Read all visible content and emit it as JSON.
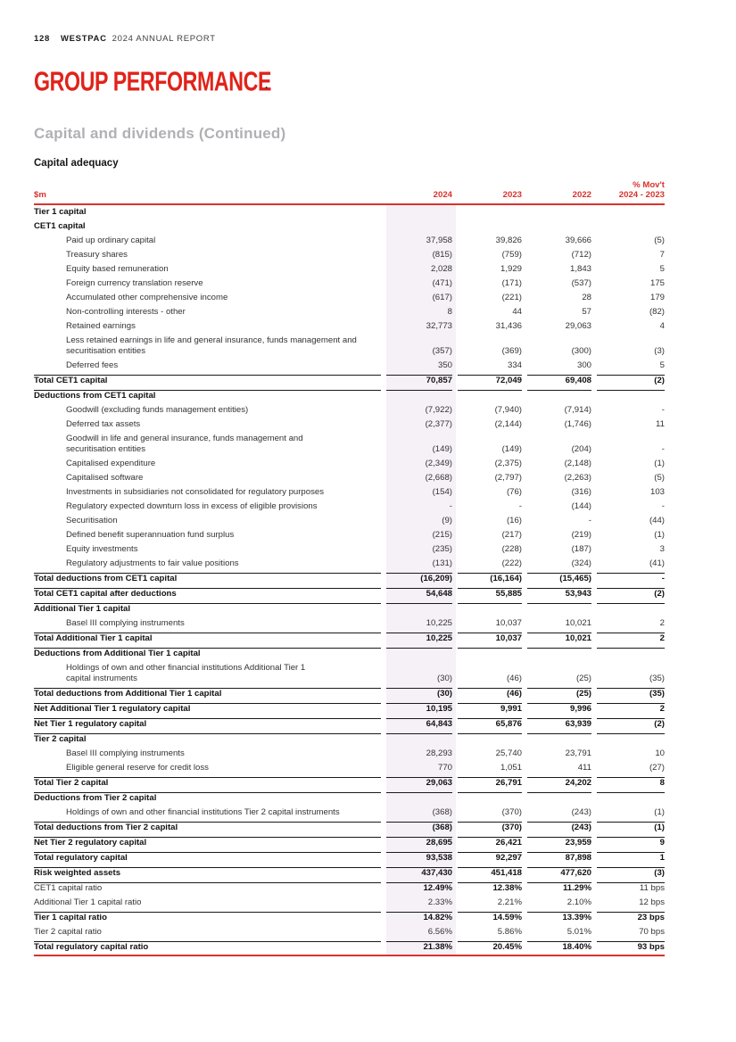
{
  "page": {
    "page_number": "128",
    "brand": "WESTPAC",
    "report": "2024 ANNUAL REPORT",
    "section_title": "GROUP PERFORMANCE",
    "section_dot": ".",
    "subtitle": "Capital and dividends (Continued)",
    "table_title": "Capital adequacy"
  },
  "colors": {
    "title_red": "#E0231A",
    "accent_red": "#D8332C",
    "column_highlight": "#F6F0F7",
    "gray_heading": "#B1B0B4"
  },
  "table": {
    "unit_label": "$m",
    "col_2024": "2024",
    "col_2023": "2023",
    "col_2022": "2022",
    "col_movt_line1": "% Mov't",
    "col_movt_line2": "2024 - 2023",
    "rows": [
      {
        "label": "Tier 1 capital",
        "style": "section"
      },
      {
        "label": "CET1 capital",
        "style": "section"
      },
      {
        "label": "Paid up ordinary capital",
        "style": "item",
        "v": [
          "37,958",
          "39,826",
          "39,666",
          "(5)"
        ]
      },
      {
        "label": "Treasury shares",
        "style": "item",
        "v": [
          "(815)",
          "(759)",
          "(712)",
          "7"
        ]
      },
      {
        "label": "Equity based remuneration",
        "style": "item",
        "v": [
          "2,028",
          "1,929",
          "1,843",
          "5"
        ]
      },
      {
        "label": "Foreign currency translation reserve",
        "style": "item",
        "v": [
          "(471)",
          "(171)",
          "(537)",
          "175"
        ]
      },
      {
        "label": "Accumulated other comprehensive income",
        "style": "item",
        "v": [
          "(617)",
          "(221)",
          "28",
          "179"
        ]
      },
      {
        "label": "Non-controlling interests - other",
        "style": "item",
        "v": [
          "8",
          "44",
          "57",
          "(82)"
        ]
      },
      {
        "label": "Retained earnings",
        "style": "item",
        "v": [
          "32,773",
          "31,436",
          "29,063",
          "4"
        ]
      },
      {
        "label": "Less retained earnings in life and general insurance, funds management and",
        "label2": "securitisation entities",
        "style": "item",
        "v": [
          "(357)",
          "(369)",
          "(300)",
          "(3)"
        ]
      },
      {
        "label": "Deferred fees",
        "style": "item",
        "v": [
          "350",
          "334",
          "300",
          "5"
        ]
      },
      {
        "label": "Total CET1 capital",
        "style": "total",
        "bt": true,
        "v": [
          "70,857",
          "72,049",
          "69,408",
          "(2)"
        ]
      },
      {
        "label": "Deductions from CET1 capital",
        "style": "section",
        "bt": true
      },
      {
        "label": "Goodwill (excluding funds management entities)",
        "style": "item",
        "v": [
          "(7,922)",
          "(7,940)",
          "(7,914)",
          "-"
        ]
      },
      {
        "label": "Deferred tax assets",
        "style": "item",
        "v": [
          "(2,377)",
          "(2,144)",
          "(1,746)",
          "11"
        ]
      },
      {
        "label": "Goodwill in life and general insurance, funds management and",
        "label2": "securitisation entities",
        "style": "item",
        "v": [
          "(149)",
          "(149)",
          "(204)",
          "-"
        ]
      },
      {
        "label": "Capitalised expenditure",
        "style": "item",
        "v": [
          "(2,349)",
          "(2,375)",
          "(2,148)",
          "(1)"
        ]
      },
      {
        "label": "Capitalised software",
        "style": "item",
        "v": [
          "(2,668)",
          "(2,797)",
          "(2,263)",
          "(5)"
        ]
      },
      {
        "label": "Investments in subsidiaries not consolidated for regulatory purposes",
        "style": "item",
        "v": [
          "(154)",
          "(76)",
          "(316)",
          "103"
        ]
      },
      {
        "label": "Regulatory expected downturn loss in excess of eligible provisions",
        "style": "item",
        "v": [
          "-",
          "-",
          "(144)",
          "-"
        ]
      },
      {
        "label": "Securitisation",
        "style": "item",
        "v": [
          "(9)",
          "(16)",
          "-",
          "(44)"
        ]
      },
      {
        "label": "Defined benefit superannuation fund surplus",
        "style": "item",
        "v": [
          "(215)",
          "(217)",
          "(219)",
          "(1)"
        ]
      },
      {
        "label": "Equity investments",
        "style": "item",
        "v": [
          "(235)",
          "(228)",
          "(187)",
          "3"
        ]
      },
      {
        "label": "Regulatory adjustments to fair value positions",
        "style": "item",
        "v": [
          "(131)",
          "(222)",
          "(324)",
          "(41)"
        ]
      },
      {
        "label": "Total deductions from CET1 capital",
        "style": "total",
        "bt": true,
        "v": [
          "(16,209)",
          "(16,164)",
          "(15,465)",
          "-"
        ]
      },
      {
        "label": "Total CET1 capital after deductions",
        "style": "total",
        "bt": true,
        "v": [
          "54,648",
          "55,885",
          "53,943",
          "(2)"
        ]
      },
      {
        "label": "Additional Tier 1 capital",
        "style": "section",
        "bt": true
      },
      {
        "label": "Basel III complying instruments",
        "style": "item",
        "v": [
          "10,225",
          "10,037",
          "10,021",
          "2"
        ]
      },
      {
        "label": "Total Additional Tier 1 capital",
        "style": "total",
        "bt": true,
        "v": [
          "10,225",
          "10,037",
          "10,021",
          "2"
        ]
      },
      {
        "label": "Deductions from Additional Tier 1 capital",
        "style": "section",
        "bt": true
      },
      {
        "label": "Holdings of own and other financial institutions Additional Tier 1",
        "label2": "capital instruments",
        "style": "item",
        "v": [
          "(30)",
          "(46)",
          "(25)",
          "(35)"
        ]
      },
      {
        "label": "Total deductions from Additional Tier 1 capital",
        "style": "total",
        "bt": true,
        "v": [
          "(30)",
          "(46)",
          "(25)",
          "(35)"
        ]
      },
      {
        "label": "Net Additional Tier 1 regulatory capital",
        "style": "total",
        "bt": true,
        "v": [
          "10,195",
          "9,991",
          "9,996",
          "2"
        ]
      },
      {
        "label": "Net Tier 1 regulatory capital",
        "style": "total",
        "bt": true,
        "v": [
          "64,843",
          "65,876",
          "63,939",
          "(2)"
        ]
      },
      {
        "label": "Tier 2 capital",
        "style": "section",
        "bt": true
      },
      {
        "label": "Basel III complying instruments",
        "style": "item",
        "v": [
          "28,293",
          "25,740",
          "23,791",
          "10"
        ]
      },
      {
        "label": "Eligible general reserve for credit loss",
        "style": "item",
        "v": [
          "770",
          "1,051",
          "411",
          "(27)"
        ]
      },
      {
        "label": "Total Tier 2 capital",
        "style": "total",
        "bt": true,
        "v": [
          "29,063",
          "26,791",
          "24,202",
          "8"
        ]
      },
      {
        "label": "Deductions from Tier 2 capital",
        "style": "section",
        "bt": true
      },
      {
        "label": "Holdings of own and other financial institutions Tier 2 capital instruments",
        "style": "item",
        "v": [
          "(368)",
          "(370)",
          "(243)",
          "(1)"
        ]
      },
      {
        "label": "Total deductions from Tier 2 capital",
        "style": "total",
        "bt": true,
        "v": [
          "(368)",
          "(370)",
          "(243)",
          "(1)"
        ]
      },
      {
        "label": "Net Tier 2 regulatory capital",
        "style": "total",
        "bt": true,
        "v": [
          "28,695",
          "26,421",
          "23,959",
          "9"
        ]
      },
      {
        "label": "Total regulatory capital",
        "style": "total",
        "bt": true,
        "v": [
          "93,538",
          "92,297",
          "87,898",
          "1"
        ]
      },
      {
        "label": "Risk weighted assets",
        "style": "total",
        "bt": true,
        "v": [
          "437,430",
          "451,418",
          "477,620",
          "(3)"
        ]
      },
      {
        "label": "CET1 capital ratio",
        "style": "mixed",
        "bt": true,
        "v": [
          "12.49%",
          "12.38%",
          "11.29%",
          "11 bps"
        ]
      },
      {
        "label": "Additional Tier 1 capital ratio",
        "style": "plain",
        "v": [
          "2.33%",
          "2.21%",
          "2.10%",
          "12 bps"
        ]
      },
      {
        "label": "Tier 1 capital ratio",
        "style": "total",
        "bt": true,
        "v": [
          "14.82%",
          "14.59%",
          "13.39%",
          "23 bps"
        ]
      },
      {
        "label": "Tier 2 capital ratio",
        "style": "plain",
        "v": [
          "6.56%",
          "5.86%",
          "5.01%",
          "70 bps"
        ]
      },
      {
        "label": "Total regulatory capital ratio",
        "style": "total",
        "bt": true,
        "v": [
          "21.38%",
          "20.45%",
          "18.40%",
          "93 bps"
        ]
      }
    ]
  }
}
